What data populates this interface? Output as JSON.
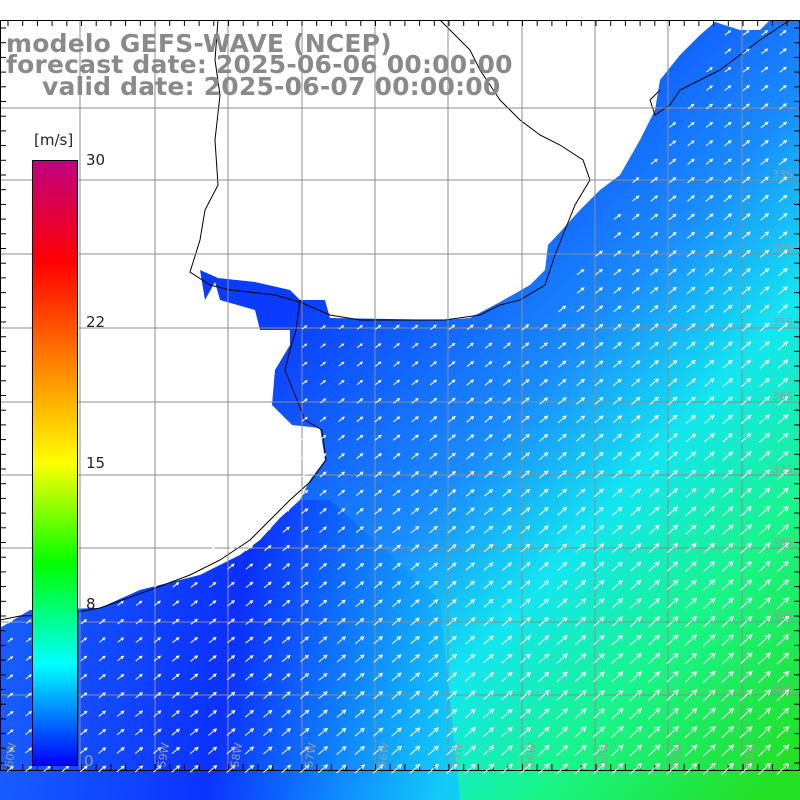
{
  "title": {
    "line1": "modelo GEFS-WAVE (NCEP)",
    "line2": "forecast date: 2025-06-06 00:00:00",
    "line3": "valid date: 2025-06-07 00:00:00"
  },
  "colorbar": {
    "units": "[m/s]",
    "ticks": [
      {
        "label": "30",
        "value": 30
      },
      {
        "label": "22",
        "value": 22
      },
      {
        "label": "15",
        "value": 15
      },
      {
        "label": "8",
        "value": 8
      },
      {
        "label": "0",
        "value": 0
      }
    ],
    "stops": [
      "#0000ff",
      "#00ffff",
      "#00ff00",
      "#ffff00",
      "#ff8000",
      "#ff0000",
      "#c00080"
    ]
  },
  "map": {
    "land_color": "#ffffff",
    "coast_color": "#000000",
    "grid_color": "#888888",
    "lon_labels": [
      "60W",
      "59W",
      "58W",
      "57W",
      "56W",
      "55W",
      "54W",
      "53W",
      "52W",
      "51W",
      "50W"
    ],
    "lat_labels": [
      "33S",
      "34S",
      "35S",
      "36S",
      "37S",
      "38S",
      "39S",
      "40S"
    ],
    "field": "wind speed with direction arrows (southwest to northeast)"
  }
}
